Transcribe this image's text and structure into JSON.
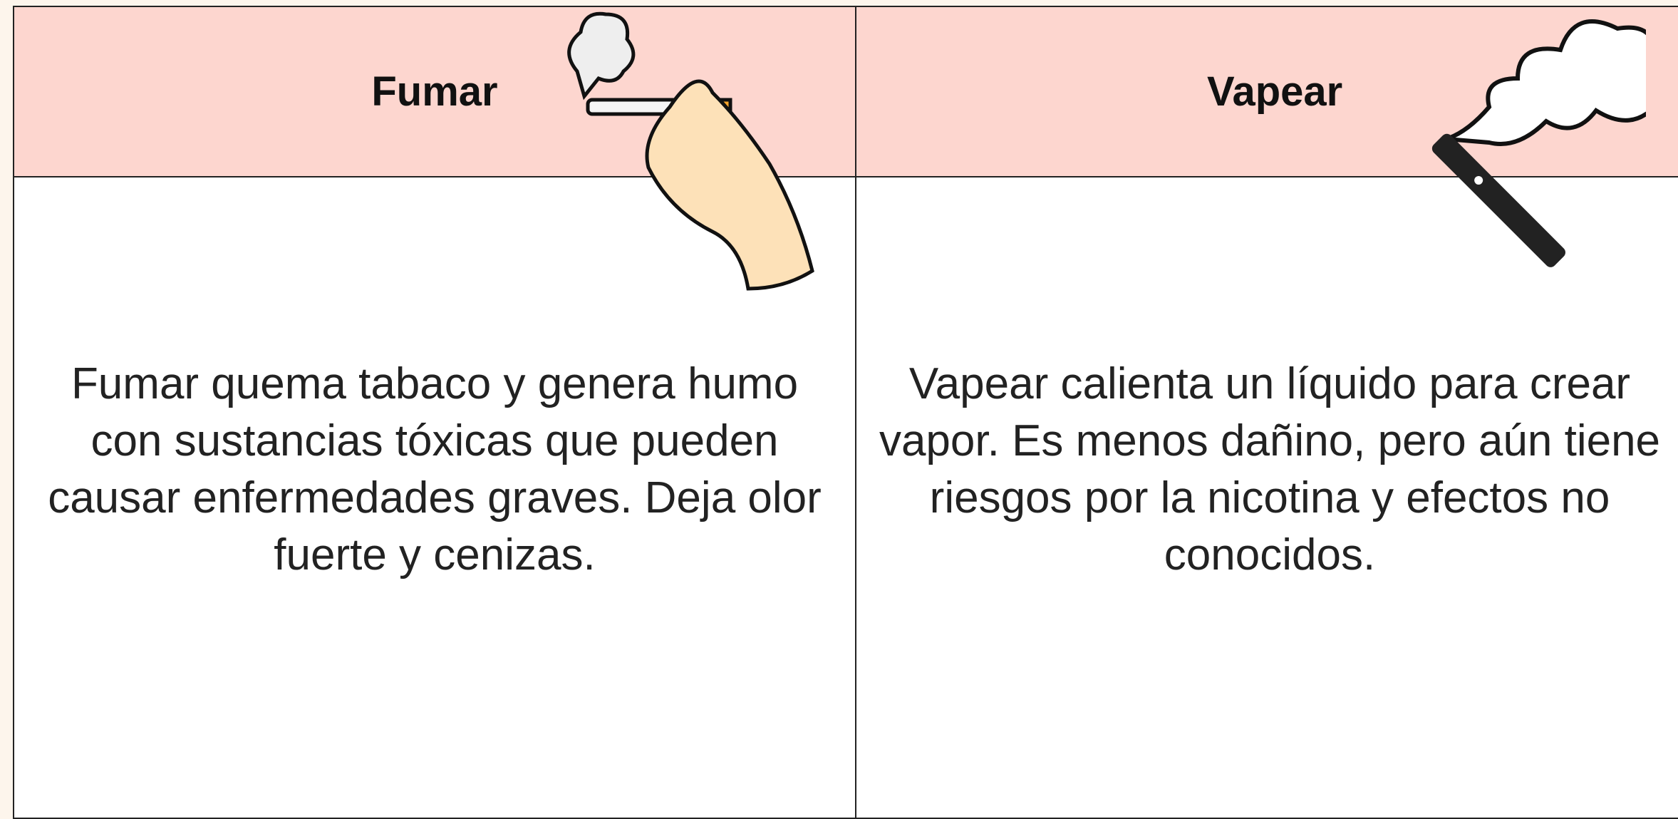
{
  "table": {
    "headers": [
      "Fumar",
      "Vapear"
    ],
    "rows": [
      [
        "Fumar quema tabaco y genera humo con sustancias tóxicas que pueden causar enfermedades graves. Deja olor fuerte y cenizas.",
        "Vapear calienta un líquido para crear vapor. Es menos dañino, pero aún tiene riesgos por la nicotina y efectos no conocidos."
      ]
    ]
  }
}
